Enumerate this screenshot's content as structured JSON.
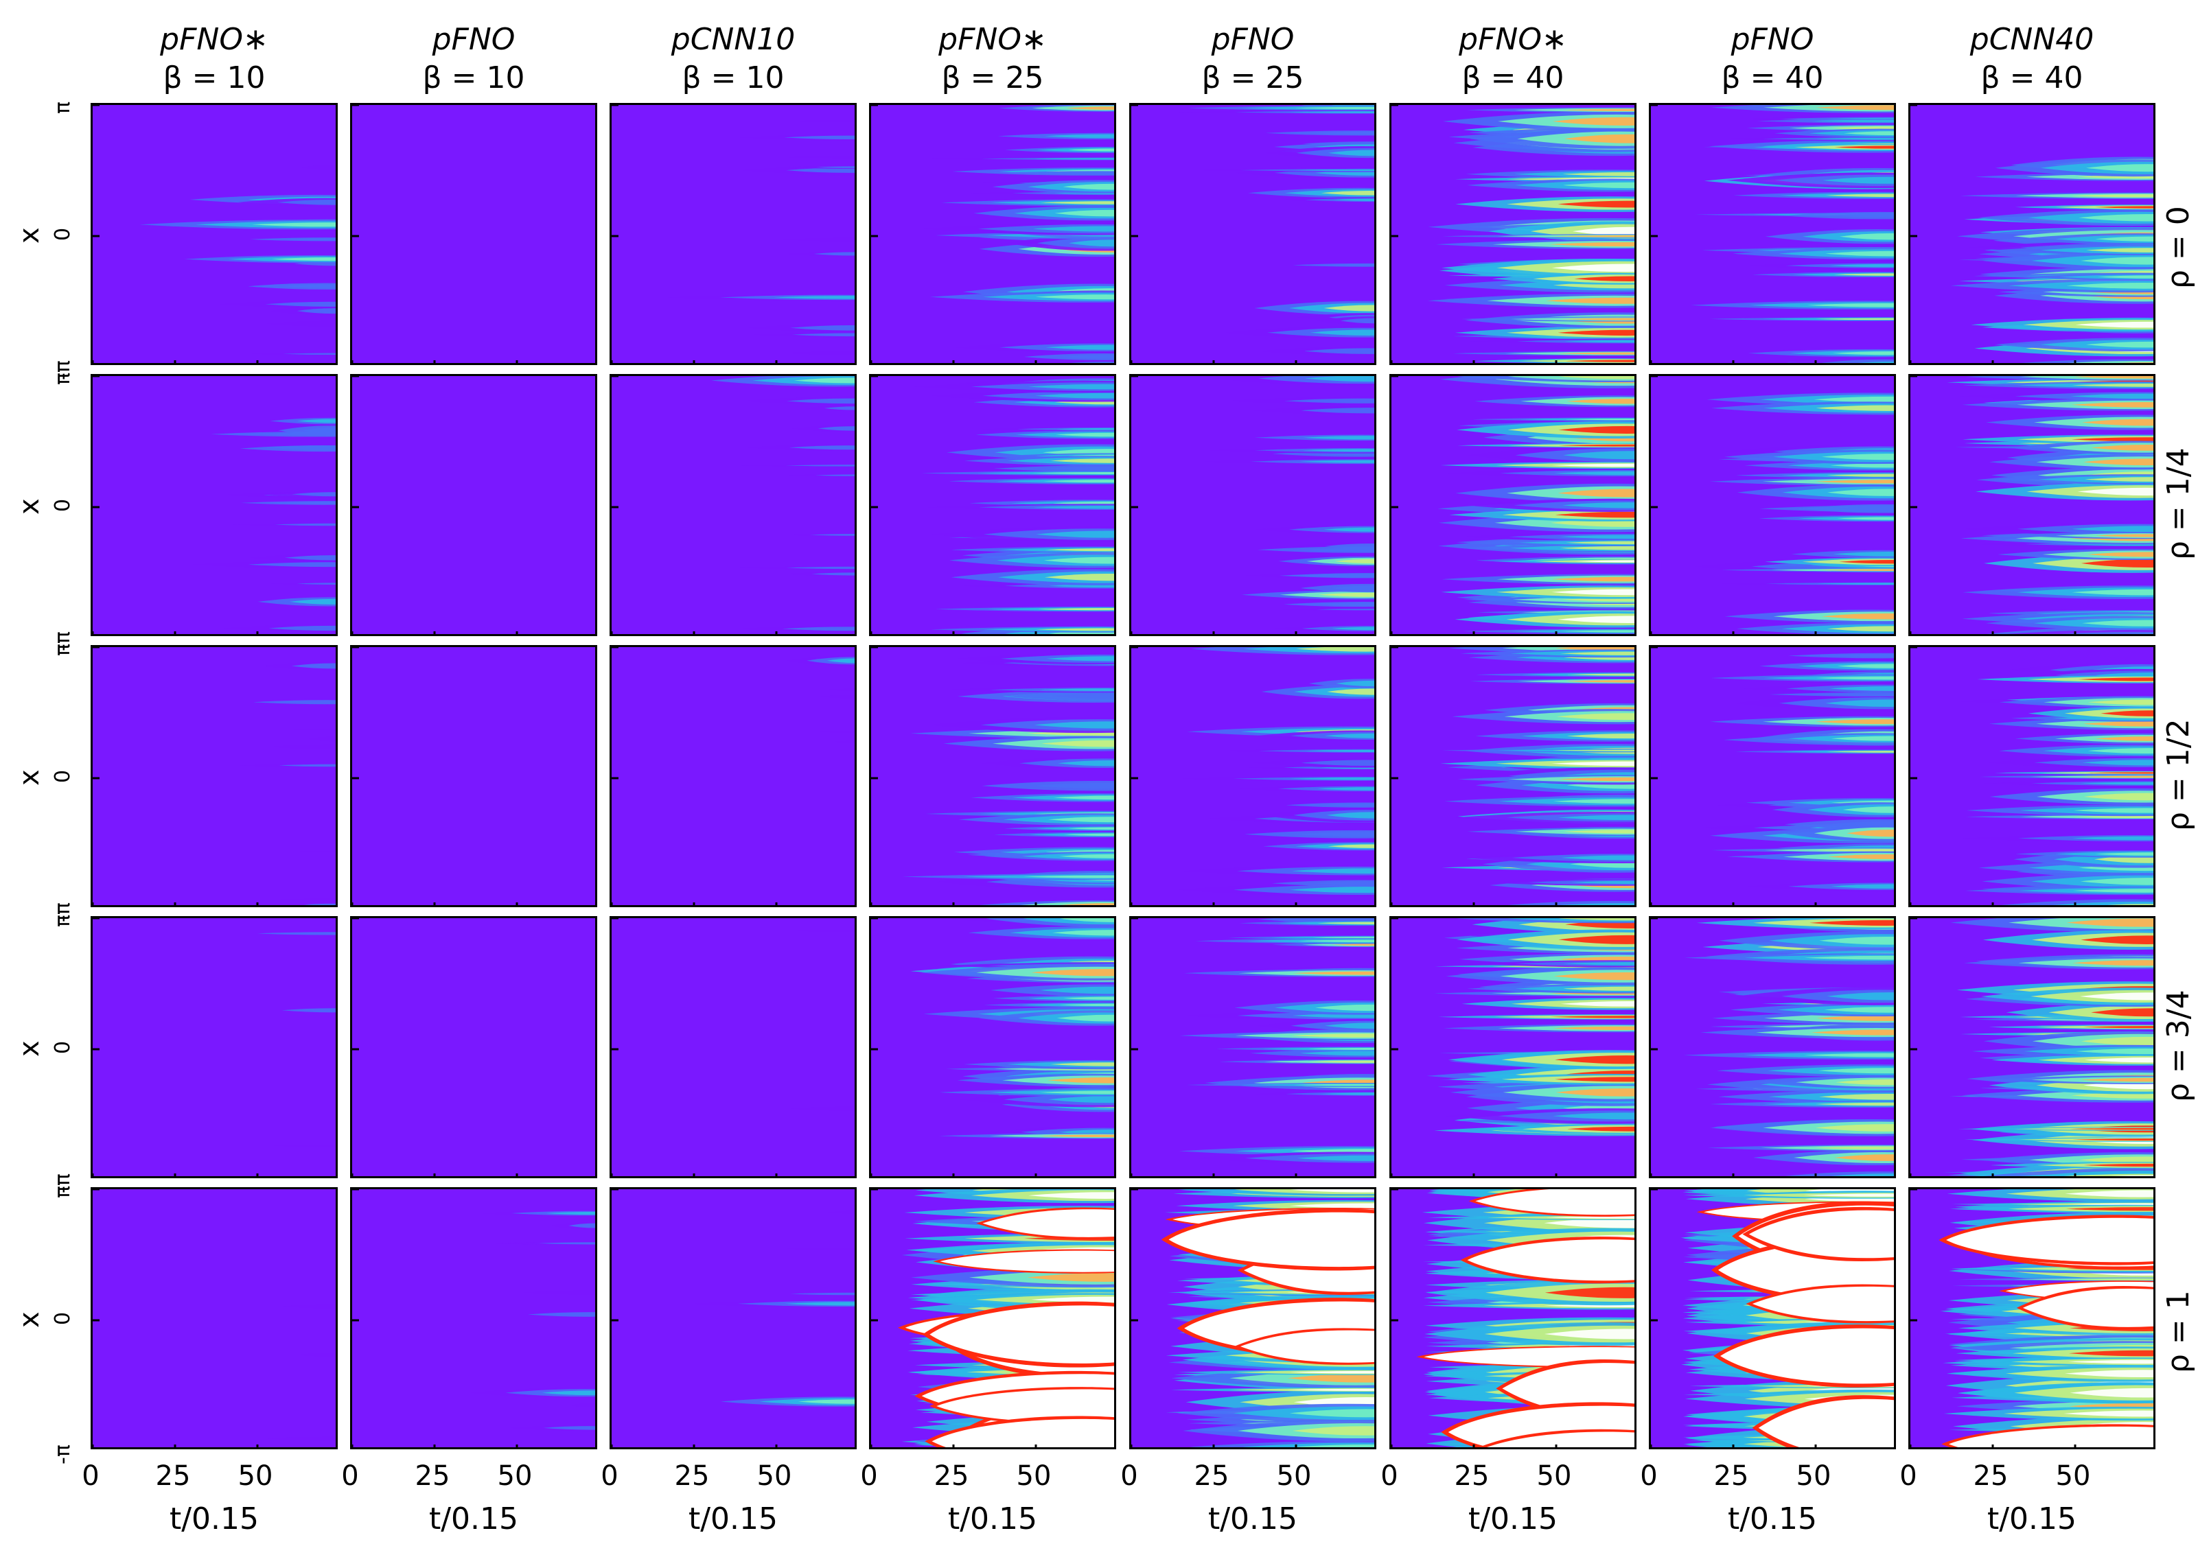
{
  "chart_data": {
    "type": "heatmap",
    "layout": {
      "rows": 5,
      "cols": 8
    },
    "columns": [
      {
        "model": "pFNO∗",
        "beta": "β = 10"
      },
      {
        "model": "pFNO",
        "beta": "β = 10"
      },
      {
        "model": "pCNN10",
        "beta": "β = 10"
      },
      {
        "model": "pFNO∗",
        "beta": "β = 25"
      },
      {
        "model": "pFNO",
        "beta": "β = 25"
      },
      {
        "model": "pFNO∗",
        "beta": "β = 40"
      },
      {
        "model": "pFNO",
        "beta": "β = 40"
      },
      {
        "model": "pCNN40",
        "beta": "β = 40"
      }
    ],
    "rows": [
      {
        "label": "ρ = 0"
      },
      {
        "label": "ρ = 1/4"
      },
      {
        "label": "ρ = 1/2"
      },
      {
        "label": "ρ = 3/4"
      },
      {
        "label": "ρ = 1"
      }
    ],
    "xlabel": "t/0.15",
    "ylabel": "x",
    "xticks": [
      "0",
      "25",
      "50"
    ],
    "xtick_values": [
      0,
      25,
      50
    ],
    "xlim": [
      0,
      75
    ],
    "yticks": [
      "-π",
      "0",
      "π"
    ],
    "colormap": "rainbow",
    "colormap_stops": [
      "#7a18ff",
      "#4a6cf7",
      "#2bb8e6",
      "#74f0c0",
      "#c8f080",
      "#ffb050",
      "#ff2a10",
      "#ffffff"
    ],
    "intensity_grid": [
      [
        0.2,
        0.06,
        0.16,
        0.36,
        0.26,
        0.62,
        0.46,
        0.56
      ],
      [
        0.2,
        0.04,
        0.16,
        0.42,
        0.28,
        0.6,
        0.42,
        0.56
      ],
      [
        0.12,
        0.04,
        0.1,
        0.38,
        0.28,
        0.52,
        0.4,
        0.5
      ],
      [
        0.1,
        0.04,
        0.08,
        0.44,
        0.34,
        0.66,
        0.54,
        0.62
      ],
      [
        0.08,
        0.12,
        0.1,
        0.86,
        0.84,
        0.95,
        0.95,
        0.9
      ]
    ]
  }
}
